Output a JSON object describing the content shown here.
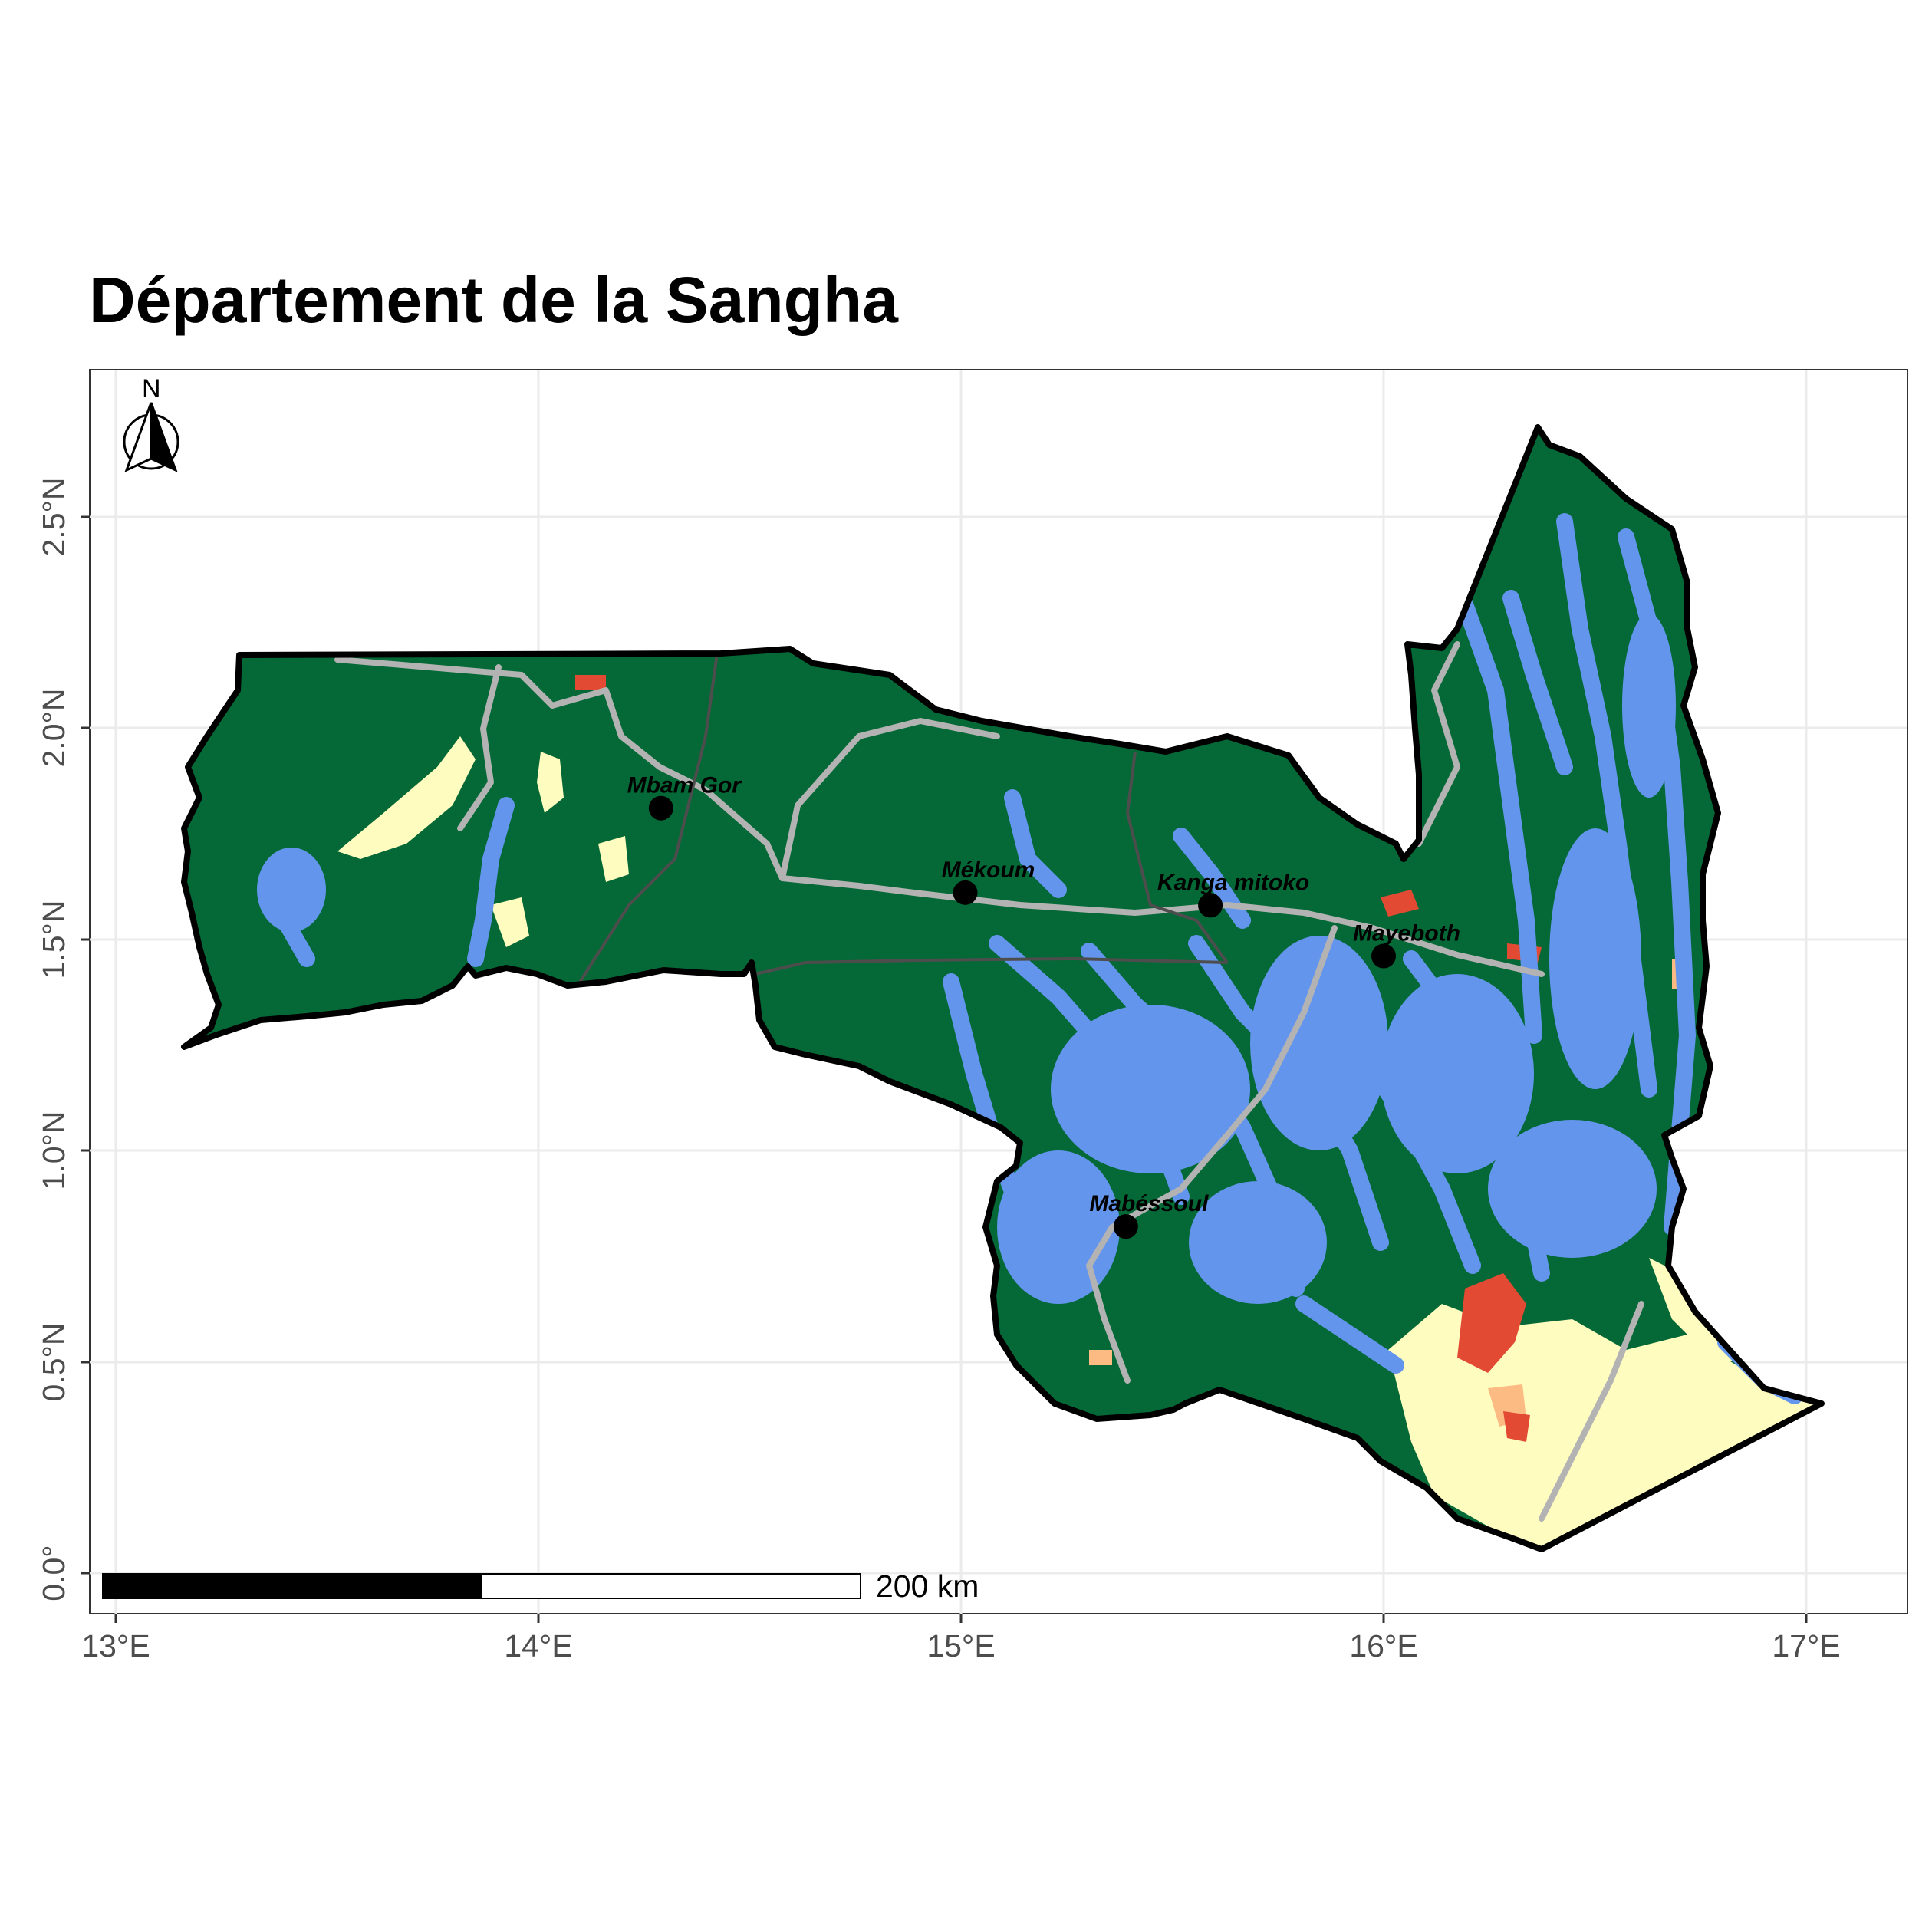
{
  "map": {
    "title": "Département de la Sangha",
    "x_ticks": [
      "13°E",
      "14°E",
      "15°E",
      "16°E",
      "17°E"
    ],
    "y_ticks": [
      "0.0°",
      "0.5°N",
      "1.0°N",
      "1.5°N",
      "2.0°N",
      "2.5°N"
    ],
    "north_label": "N",
    "scale_label": "200 km",
    "places": [
      {
        "name": "Mbam Gor",
        "lon": 14.29,
        "lat": 1.81
      },
      {
        "name": "Mékoum",
        "lon": 15.01,
        "lat": 1.61
      },
      {
        "name": "Kanga mitoko",
        "lon": 15.59,
        "lat": 1.58
      },
      {
        "name": "Mayeboth",
        "lon": 16.0,
        "lat": 1.46
      },
      {
        "name": "Mabéssoul",
        "lon": 15.39,
        "lat": 0.82
      }
    ],
    "colors": {
      "forest": "#046936",
      "water_wetland": "#6495ed",
      "savanna": "#fffcc0",
      "cropland": "#e34a33",
      "mosaic": "#fdbb84",
      "roads": "#b3b3b3",
      "boundaries": "#4d4d4d",
      "outline": "#000000"
    }
  }
}
